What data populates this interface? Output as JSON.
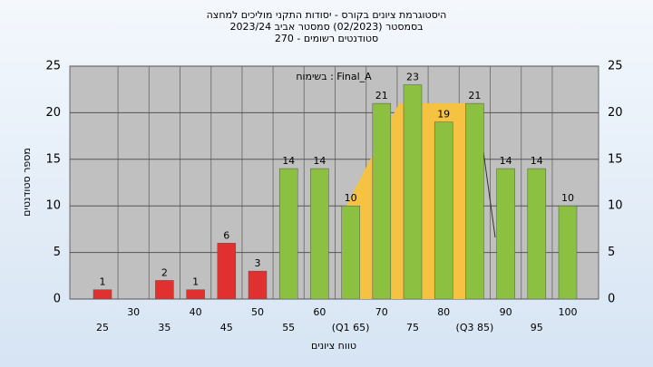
{
  "chart_data": {
    "type": "bar",
    "title": [
      "היסטוגרמת ציונים בקורס - יסודות התקני מוליכים למחצה",
      "בסמסטר (02/2023) סמסטר אביב 2023/24",
      "סטודנטים רשומים - 270"
    ],
    "annotation": "בשימוח : Final_A",
    "x_label": "טווח ציונים",
    "y_label": "מספר סטודנטים",
    "categories": [
      "25",
      "30",
      "35",
      "40",
      "45",
      "50",
      "55",
      "60",
      "(Q1 65)",
      "70",
      "75",
      "80",
      "(Q3 85)",
      "90",
      "95",
      "100"
    ],
    "values": [
      1,
      0,
      2,
      1,
      6,
      3,
      14,
      14,
      10,
      21,
      23,
      19,
      21,
      14,
      14,
      10
    ],
    "colors": [
      "#e03030",
      "#e03030",
      "#e03030",
      "#e03030",
      "#e03030",
      "#e03030",
      "#8cc040",
      "#8cc040",
      "#8cc040",
      "#8cc040",
      "#8cc040",
      "#8cc040",
      "#8cc040",
      "#8cc040",
      "#8cc040",
      "#8cc040"
    ],
    "ylim": [
      0,
      25
    ],
    "yticks": [
      0,
      5,
      10,
      15,
      20,
      25
    ],
    "grid": true
  }
}
